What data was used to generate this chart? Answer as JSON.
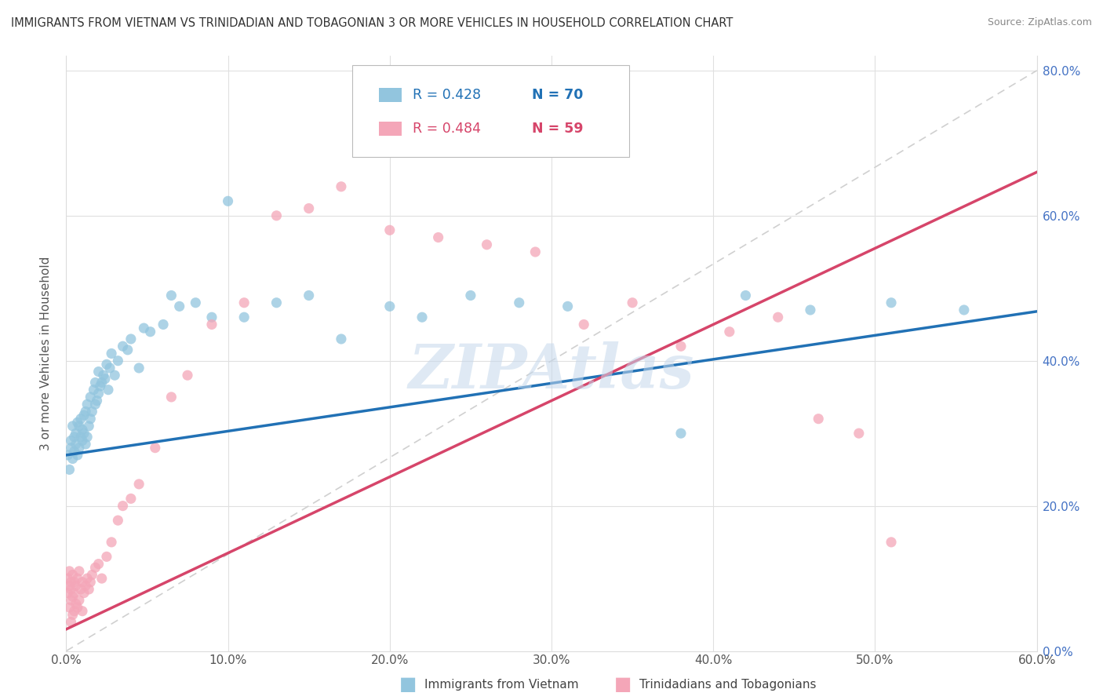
{
  "title": "IMMIGRANTS FROM VIETNAM VS TRINIDADIAN AND TOBAGONIAN 3 OR MORE VEHICLES IN HOUSEHOLD CORRELATION CHART",
  "source": "Source: ZipAtlas.com",
  "ylabel": "3 or more Vehicles in Household",
  "legend_blue_r": "R = 0.428",
  "legend_blue_n": "N = 70",
  "legend_pink_r": "R = 0.484",
  "legend_pink_n": "N = 59",
  "legend_blue_label": "Immigrants from Vietnam",
  "legend_pink_label": "Trinidadians and Tobagonians",
  "watermark": "ZIPAtlas",
  "blue_color": "#92c5de",
  "pink_color": "#f4a6b8",
  "blue_line_color": "#2171b5",
  "pink_line_color": "#d6456a",
  "diagonal_color": "#d0d0d0",
  "background_color": "#ffffff",
  "xlim": [
    0.0,
    0.6
  ],
  "ylim": [
    0.0,
    0.82
  ],
  "blue_intercept": 0.27,
  "blue_slope": 0.33,
  "pink_intercept": 0.03,
  "pink_slope": 1.05,
  "blue_scatter_x": [
    0.001,
    0.002,
    0.003,
    0.003,
    0.004,
    0.004,
    0.005,
    0.005,
    0.006,
    0.006,
    0.007,
    0.007,
    0.008,
    0.008,
    0.009,
    0.009,
    0.01,
    0.01,
    0.011,
    0.011,
    0.012,
    0.012,
    0.013,
    0.013,
    0.014,
    0.015,
    0.015,
    0.016,
    0.017,
    0.018,
    0.018,
    0.019,
    0.02,
    0.02,
    0.021,
    0.022,
    0.023,
    0.024,
    0.025,
    0.026,
    0.027,
    0.028,
    0.03,
    0.032,
    0.035,
    0.038,
    0.04,
    0.045,
    0.048,
    0.052,
    0.06,
    0.065,
    0.07,
    0.08,
    0.09,
    0.1,
    0.11,
    0.13,
    0.15,
    0.17,
    0.2,
    0.22,
    0.25,
    0.28,
    0.31,
    0.38,
    0.42,
    0.46,
    0.51,
    0.555
  ],
  "blue_scatter_y": [
    0.27,
    0.25,
    0.28,
    0.29,
    0.265,
    0.31,
    0.275,
    0.295,
    0.285,
    0.3,
    0.27,
    0.315,
    0.28,
    0.31,
    0.295,
    0.32,
    0.29,
    0.305,
    0.3,
    0.325,
    0.285,
    0.33,
    0.295,
    0.34,
    0.31,
    0.32,
    0.35,
    0.33,
    0.36,
    0.34,
    0.37,
    0.345,
    0.355,
    0.385,
    0.365,
    0.37,
    0.38,
    0.375,
    0.395,
    0.36,
    0.39,
    0.41,
    0.38,
    0.4,
    0.42,
    0.415,
    0.43,
    0.39,
    0.445,
    0.44,
    0.45,
    0.49,
    0.475,
    0.48,
    0.46,
    0.62,
    0.46,
    0.48,
    0.49,
    0.43,
    0.475,
    0.46,
    0.49,
    0.48,
    0.475,
    0.3,
    0.49,
    0.47,
    0.48,
    0.47
  ],
  "pink_scatter_x": [
    0.001,
    0.001,
    0.002,
    0.002,
    0.002,
    0.003,
    0.003,
    0.003,
    0.003,
    0.004,
    0.004,
    0.004,
    0.005,
    0.005,
    0.005,
    0.006,
    0.006,
    0.007,
    0.007,
    0.008,
    0.008,
    0.009,
    0.01,
    0.01,
    0.011,
    0.012,
    0.013,
    0.014,
    0.015,
    0.016,
    0.018,
    0.02,
    0.022,
    0.025,
    0.028,
    0.032,
    0.035,
    0.04,
    0.045,
    0.055,
    0.065,
    0.075,
    0.09,
    0.11,
    0.13,
    0.15,
    0.17,
    0.2,
    0.23,
    0.26,
    0.29,
    0.32,
    0.35,
    0.38,
    0.41,
    0.44,
    0.465,
    0.49,
    0.51
  ],
  "pink_scatter_y": [
    0.08,
    0.1,
    0.06,
    0.09,
    0.11,
    0.04,
    0.07,
    0.085,
    0.095,
    0.05,
    0.075,
    0.105,
    0.055,
    0.08,
    0.095,
    0.065,
    0.09,
    0.06,
    0.1,
    0.07,
    0.11,
    0.085,
    0.055,
    0.095,
    0.08,
    0.09,
    0.1,
    0.085,
    0.095,
    0.105,
    0.115,
    0.12,
    0.1,
    0.13,
    0.15,
    0.18,
    0.2,
    0.21,
    0.23,
    0.28,
    0.35,
    0.38,
    0.45,
    0.48,
    0.6,
    0.61,
    0.64,
    0.58,
    0.57,
    0.56,
    0.55,
    0.45,
    0.48,
    0.42,
    0.44,
    0.46,
    0.32,
    0.3,
    0.15
  ]
}
